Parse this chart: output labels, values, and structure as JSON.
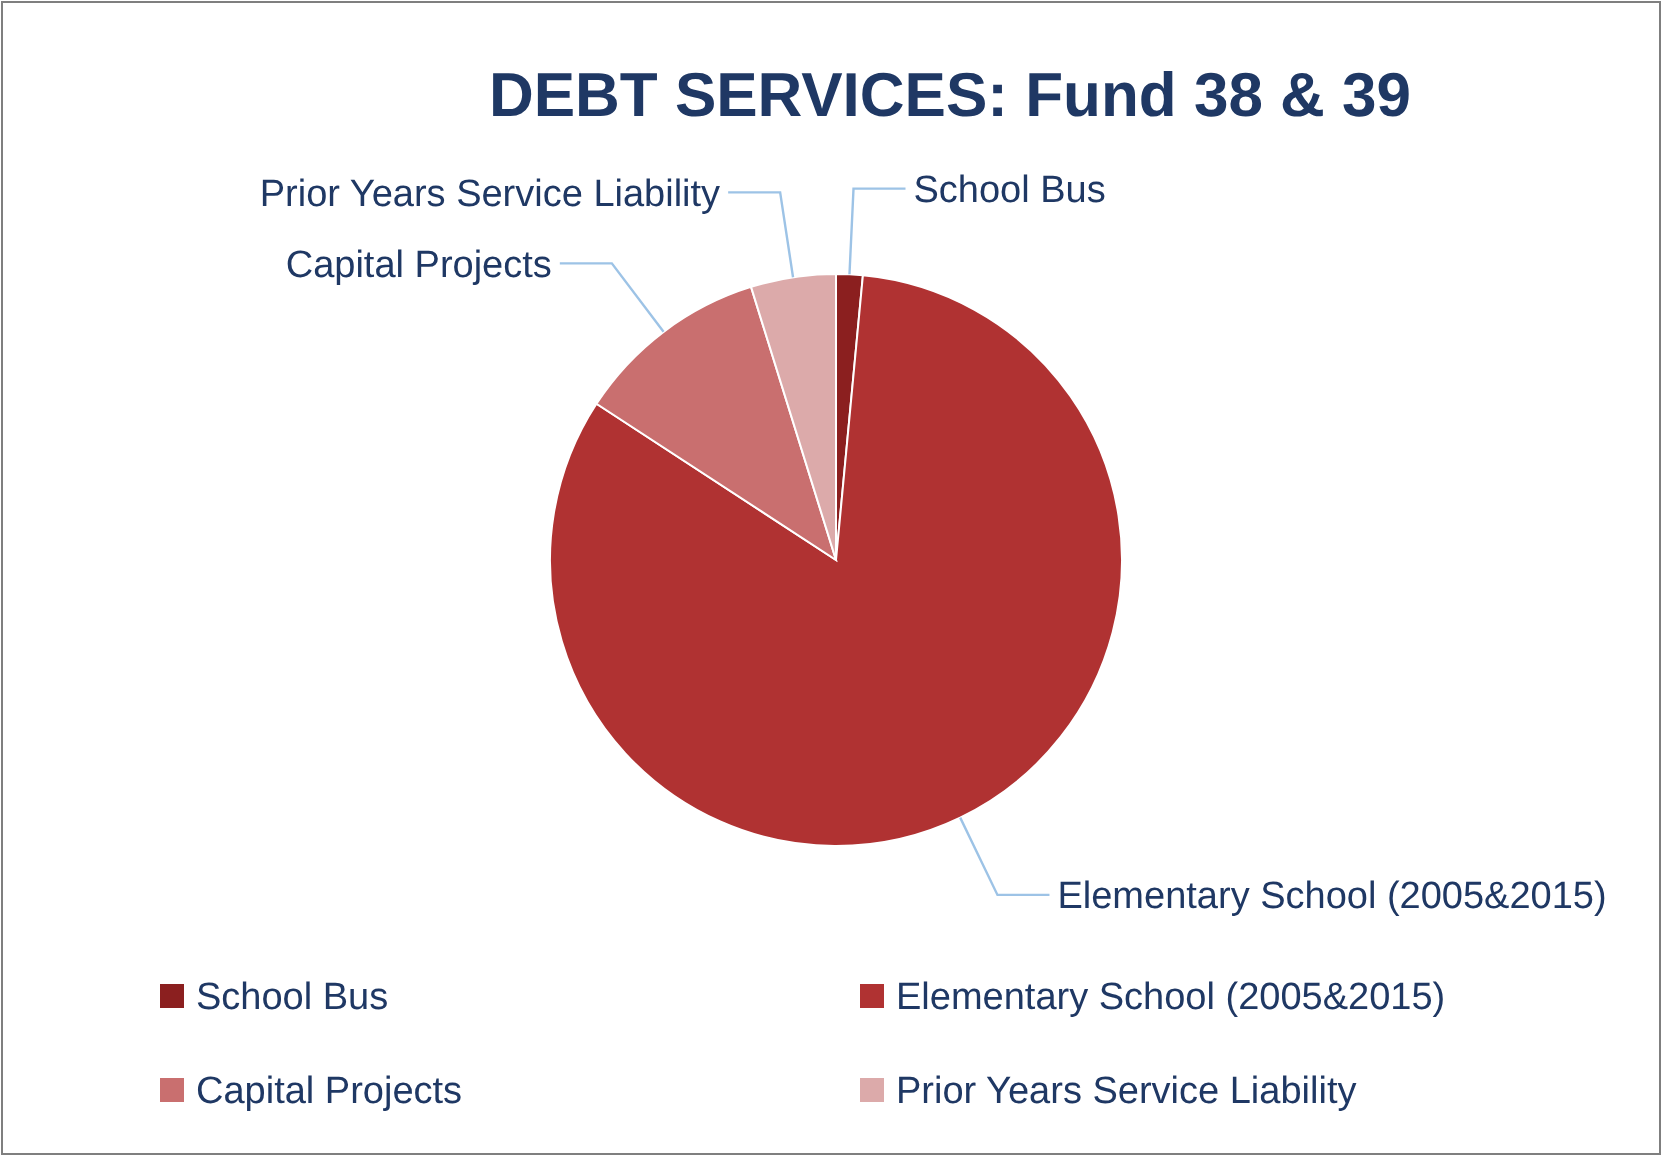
{
  "chart_data": {
    "type": "pie",
    "title": "DEBT SERVICES:  Fund 38 & 39",
    "categories": [
      "School Bus",
      "Elementary School (2005&2015)",
      "Capital Projects",
      "Prior Years Service Liability"
    ],
    "values": [
      1.5,
      82.7,
      11,
      4.8
    ],
    "colors": [
      "#8b1f1f",
      "#b03232",
      "#c96f6f",
      "#dcaaaa"
    ],
    "legend": "bottom"
  }
}
